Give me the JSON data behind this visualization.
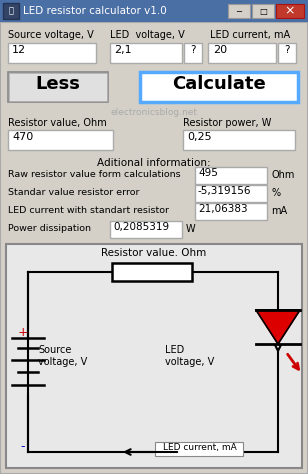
{
  "title_bar_text": "LED resistor calculator v1.0",
  "bg_color": "#d4d0c8",
  "title_bar_color": "#4a6fa5",
  "close_btn_color": "#c0392b",
  "field_bg": "#ffffff",
  "label_source": "Source voltage, V",
  "label_led_v": "LED  voltage, V",
  "label_led_i": "LED current, mA",
  "val_source": "12",
  "val_led_v": "2,1",
  "val_led_i": "20",
  "btn_less_label": "Less",
  "btn_calc_label": "Calculate",
  "btn_calc_border": "#55aaff",
  "watermark": "electronicsblog.net",
  "label_res_val": "Resistor value, Ohm",
  "label_res_pow": "Resistor power, W",
  "val_res_val": "470",
  "val_res_pow": "0,25",
  "label_additional": "Aditional information:",
  "row1_label": "Raw resistor value form calculations",
  "row1_val": "495",
  "row1_unit": "Ohm",
  "row2_label": "Standar value resistor error",
  "row2_val": "-5,319156",
  "row2_unit": "%",
  "row3_label": "LED current with standart resistor",
  "row3_val": "21,06383",
  "row3_unit": "mA",
  "row4_label": "Power dissipation",
  "row4_val": "0,2085319",
  "row4_unit": "W",
  "circuit_label": "Resistor value. Ohm",
  "led_color_fill": "#dd0000",
  "arrow_color": "#cc0000",
  "plus_color": "#cc0000",
  "minus_color": "#0000cc",
  "text_blue": "#0000cc"
}
